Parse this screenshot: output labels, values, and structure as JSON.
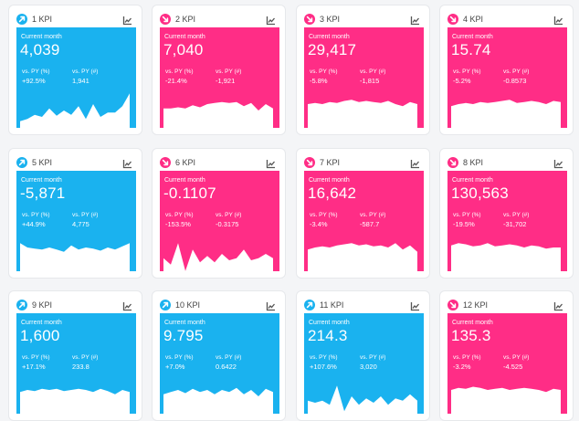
{
  "labels": {
    "current_month": "Current month",
    "vs_py_pct": "vs. PY (%)",
    "vs_py_abs": "vs. PY (#)"
  },
  "colors": {
    "up": "#1ab2ef",
    "down": "#ff2d86",
    "icon": "#555555"
  },
  "icons": {
    "trend_up": "arrow-up-right-icon",
    "trend_down": "arrow-down-right-icon",
    "chart_toggle": "line-chart-icon"
  },
  "cards": [
    {
      "title": "1 KPI",
      "trend": "up",
      "value": "4,039",
      "pct": "+92.5%",
      "abs": "1,941",
      "spark": [
        8,
        10,
        14,
        12,
        20,
        13,
        18,
        14,
        22,
        10,
        24,
        12,
        16,
        16,
        22,
        34
      ]
    },
    {
      "title": "2 KPI",
      "trend": "down",
      "value": "7,040",
      "pct": "-21.4%",
      "abs": "-1,921",
      "spark": [
        20,
        20,
        21,
        20,
        23,
        21,
        24,
        25,
        26,
        25,
        26,
        22,
        25,
        18,
        24,
        20
      ]
    },
    {
      "title": "3 KPI",
      "trend": "down",
      "value": "29,417",
      "pct": "-5.8%",
      "abs": "-1,815",
      "spark": [
        24,
        25,
        24,
        26,
        25,
        27,
        28,
        26,
        27,
        26,
        25,
        27,
        24,
        22,
        26,
        24
      ]
    },
    {
      "title": "4 KPI",
      "trend": "down",
      "value": "15.74",
      "pct": "-5.2%",
      "abs": "-0.8573",
      "spark": [
        22,
        24,
        25,
        24,
        26,
        25,
        26,
        27,
        28,
        25,
        26,
        27,
        26,
        24,
        27,
        26
      ]
    },
    {
      "title": "5 KPI",
      "trend": "up",
      "value": "-5,871",
      "pct": "+44.9%",
      "abs": "4,775",
      "spark": [
        28,
        24,
        23,
        22,
        24,
        22,
        20,
        26,
        22,
        24,
        23,
        21,
        24,
        22,
        25,
        28
      ]
    },
    {
      "title": "6 KPI",
      "trend": "down",
      "value": "-0.1107",
      "pct": "-153.5%",
      "abs": "-0.3175",
      "spark": [
        14,
        8,
        28,
        2,
        22,
        10,
        16,
        10,
        18,
        12,
        14,
        22,
        12,
        14,
        18,
        14
      ]
    },
    {
      "title": "7 KPI",
      "trend": "down",
      "value": "16,642",
      "pct": "-3.4%",
      "abs": "-587.7",
      "spark": [
        22,
        24,
        25,
        24,
        26,
        27,
        28,
        26,
        27,
        25,
        26,
        24,
        28,
        22,
        26,
        20
      ]
    },
    {
      "title": "8 KPI",
      "trend": "down",
      "value": "130,563",
      "pct": "-19.5%",
      "abs": "-31,702",
      "spark": [
        26,
        28,
        27,
        25,
        26,
        28,
        25,
        26,
        27,
        26,
        24,
        26,
        25,
        23,
        24,
        24
      ]
    },
    {
      "title": "9 KPI",
      "trend": "up",
      "value": "1,600",
      "pct": "+17.1%",
      "abs": "233.8",
      "spark": [
        22,
        24,
        23,
        25,
        24,
        25,
        23,
        24,
        25,
        24,
        22,
        25,
        23,
        20,
        24,
        22
      ]
    },
    {
      "title": "10 KPI",
      "trend": "up",
      "value": "9.795",
      "pct": "+7.0%",
      "abs": "0.6422",
      "spark": [
        20,
        22,
        24,
        21,
        25,
        22,
        24,
        20,
        24,
        22,
        26,
        20,
        24,
        18,
        25,
        22
      ]
    },
    {
      "title": "11 KPI",
      "trend": "up",
      "value": "214.3",
      "pct": "+107.6%",
      "abs": "3,020",
      "spark": [
        14,
        12,
        14,
        10,
        28,
        4,
        18,
        10,
        16,
        12,
        18,
        10,
        16,
        14,
        20,
        14
      ]
    },
    {
      "title": "12 KPI",
      "trend": "down",
      "value": "135.3",
      "pct": "-3.2%",
      "abs": "-4.525",
      "spark": [
        24,
        26,
        25,
        27,
        26,
        24,
        25,
        26,
        24,
        25,
        26,
        25,
        24,
        22,
        25,
        24
      ]
    }
  ]
}
